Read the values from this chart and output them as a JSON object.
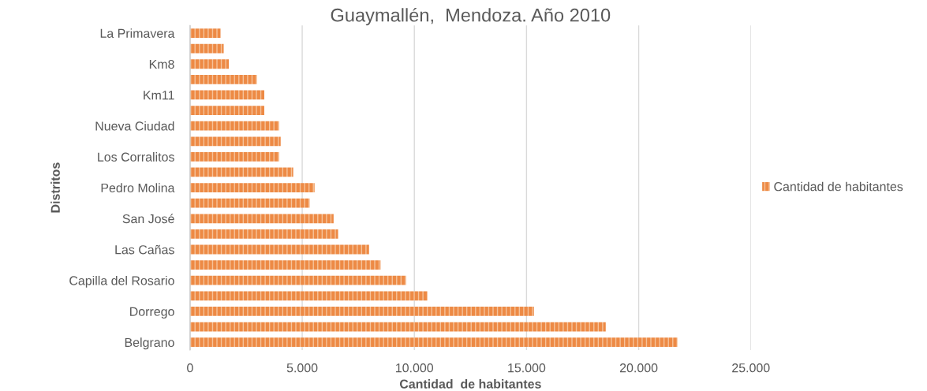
{
  "chart_data": {
    "type": "bar",
    "orientation": "horizontal",
    "title": "Guaymallén,  Mendoza. Año 2010",
    "xlabel": "Cantidad  de habitantes",
    "ylabel": "Distritos",
    "categories": [
      "La Primavera",
      null,
      "Km8",
      null,
      "Km11",
      null,
      "Nueva Ciudad",
      null,
      "Los Corralitos",
      null,
      "Pedro Molina",
      null,
      "San José",
      null,
      "Las Cañas",
      null,
      "Capilla del Rosario",
      null,
      "Dorrego",
      null,
      "Belgrano"
    ],
    "series": [
      {
        "name": "Cantidad de habitantes",
        "color": "#ed8a45",
        "values": [
          1360,
          1500,
          1730,
          2980,
          3310,
          3310,
          3970,
          4040,
          3970,
          4600,
          5550,
          5330,
          6400,
          6600,
          7980,
          8490,
          9630,
          10590,
          15330,
          18530,
          21730
        ]
      }
    ],
    "xlim": [
      0,
      25000
    ],
    "xticks": [
      {
        "value": 0,
        "label": "0"
      },
      {
        "value": 5000,
        "label": "5.000"
      },
      {
        "value": 10000,
        "label": "10.000"
      },
      {
        "value": 15000,
        "label": "15.000"
      },
      {
        "value": 20000,
        "label": "20.000"
      },
      {
        "value": 25000,
        "label": "25.000"
      }
    ],
    "grid": "x",
    "legend": "right"
  }
}
